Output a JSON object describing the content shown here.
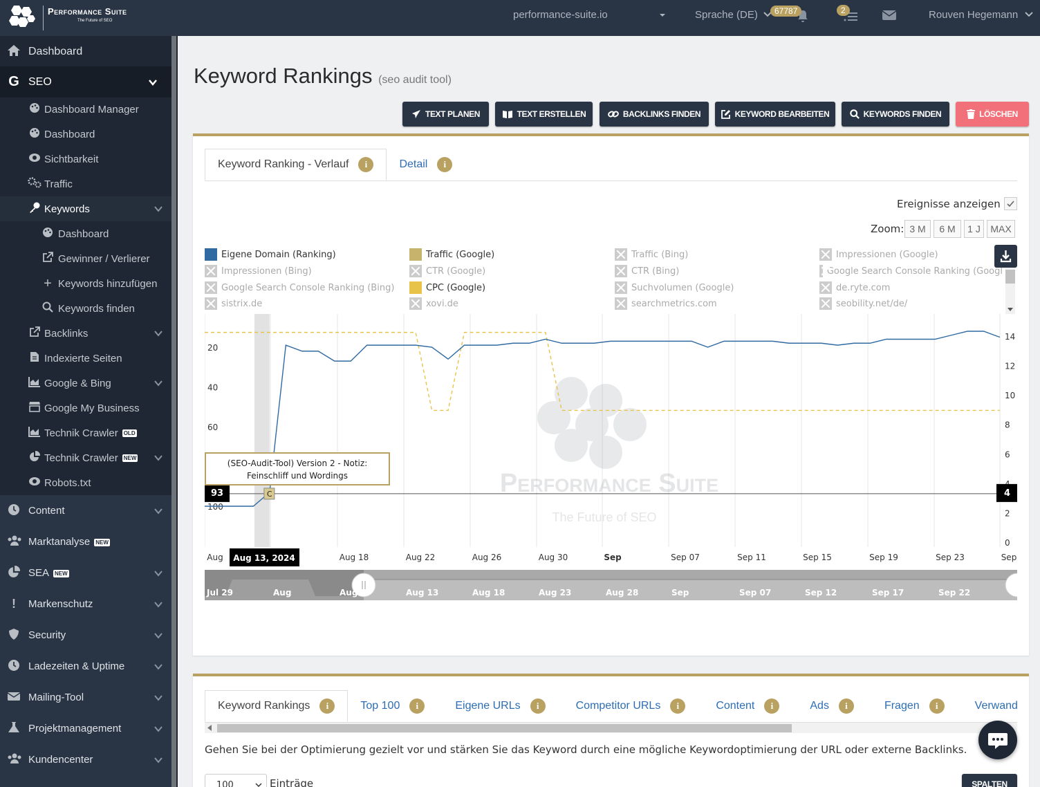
{
  "header": {
    "brand": "Performance Suite",
    "brand_tagline": "The Future of SEO",
    "domain": "performance-suite.io",
    "language": "Sprache (DE)",
    "credits_badge": "67787",
    "tasks_badge": "2",
    "user": "Rouven Hegemann"
  },
  "sidebar": {
    "dashboard": "Dashboard",
    "seo": "SEO",
    "seo_items": [
      "Dashboard Manager",
      "Dashboard",
      "Sichtbarkeit",
      "Traffic",
      "Keywords"
    ],
    "keyword_items": [
      "Dashboard",
      "Gewinner / Verlierer",
      "Keywords hinzufügen",
      "Keywords finden"
    ],
    "more_items": [
      "Backlinks",
      "Indexierte Seiten",
      "Google & Bing",
      "Google My Business",
      "Technik Crawler",
      "Technik Crawler",
      "Robots.txt"
    ],
    "tag_old": "OLD",
    "tag_new": "NEW",
    "sections": [
      "Content",
      "Marktanalyse",
      "SEA",
      "Markenschutz",
      "Security",
      "Ladezeiten & Uptime",
      "Mailing-Tool",
      "Projektmanagement",
      "Kundencenter"
    ]
  },
  "page": {
    "title": "Keyword Rankings",
    "subtitle": "(seo audit tool)",
    "buttons": [
      "TEXT PLANEN",
      "TEXT ERSTELLEN",
      "BACKLINKS FINDEN",
      "KEYWORD BEARBEITEN",
      "KEYWORDS FINDEN",
      "LÖSCHEN"
    ]
  },
  "chart_card": {
    "tabs": [
      "Keyword Ranking - Verlauf",
      "Detail"
    ],
    "events_label": "Ereignisse anzeigen",
    "zoom_label": "Zoom:",
    "zoom_options": [
      "3 M",
      "6 M",
      "1 J",
      "MAX"
    ],
    "legend": [
      {
        "label": "Eigene Domain (Ranking)",
        "color": "#2f6aa3",
        "on": true
      },
      {
        "label": "Traffic (Google)",
        "color": "#c7b36c",
        "on": true
      },
      {
        "label": "Traffic (Bing)",
        "on": false
      },
      {
        "label": "Impressionen (Google)",
        "on": false
      },
      {
        "label": "Impressionen (Bing)",
        "on": false
      },
      {
        "label": "CTR (Google)",
        "on": false
      },
      {
        "label": "CTR (Bing)",
        "on": false
      },
      {
        "label": "Google Search Console Ranking (Googl",
        "on": false
      },
      {
        "label": "Google Search Console Ranking (Bing)",
        "on": false
      },
      {
        "label": "CPC (Google)",
        "color": "#e8c34a",
        "on": true
      },
      {
        "label": "Suchvolumen (Google)",
        "on": false
      },
      {
        "label": "de.ryte.com",
        "on": false
      },
      {
        "label": "sistrix.de",
        "on": false
      },
      {
        "label": "xovi.de",
        "on": false
      },
      {
        "label": "searchmetrics.com",
        "on": false
      },
      {
        "label": "seobility.net/de/",
        "on": false
      }
    ],
    "tooltip_line1": "(SEO-Audit-Tool) Version 2 - Notiz:",
    "tooltip_line2": "Feinschliff und Wordings",
    "event_flag": "C",
    "crosshair_left": "93",
    "crosshair_right": "4",
    "crosshair_date": "Aug 13, 2024",
    "watermark_title": "Performance Suite",
    "watermark_tagline": "The Future of SEO",
    "navigator_labels": [
      "Jul 29",
      "Aug",
      "Aug",
      "Aug 13",
      "Aug 18",
      "Aug 23",
      "Aug 28",
      "Sep",
      "Sep 07",
      "Sep 12",
      "Sep 17",
      "Sep 22"
    ]
  },
  "chart_data": {
    "type": "line",
    "x_tick_labels": [
      "Aug",
      "Aug 18",
      "Aug 22",
      "Aug 26",
      "Aug 30",
      "Sep",
      "Sep 07",
      "Sep 11",
      "Sep 15",
      "Sep 19",
      "Sep 23",
      "Sep"
    ],
    "y_left_ticks": [
      20,
      40,
      60,
      80,
      100
    ],
    "y_left_reversed": true,
    "y_right_ticks": [
      14,
      12,
      10,
      8,
      6,
      4,
      2,
      0
    ],
    "x_range": [
      "2024-08-09",
      "2024-09-27"
    ],
    "series": [
      {
        "name": "Eigene Domain (Ranking)",
        "axis": "left",
        "x": [
          "2024-08-09",
          "2024-08-12",
          "2024-08-13",
          "2024-08-14",
          "2024-08-15",
          "2024-08-16",
          "2024-08-17",
          "2024-08-18",
          "2024-08-19",
          "2024-08-20",
          "2024-08-21",
          "2024-08-22",
          "2024-08-23",
          "2024-08-24",
          "2024-08-25",
          "2024-08-26",
          "2024-08-27",
          "2024-08-28",
          "2024-08-29",
          "2024-08-30",
          "2024-08-31",
          "2024-09-01",
          "2024-09-02",
          "2024-09-03",
          "2024-09-04",
          "2024-09-05",
          "2024-09-06",
          "2024-09-07",
          "2024-09-08",
          "2024-09-09",
          "2024-09-10",
          "2024-09-11",
          "2024-09-12",
          "2024-09-13",
          "2024-09-14",
          "2024-09-15",
          "2024-09-16",
          "2024-09-17",
          "2024-09-18",
          "2024-09-19",
          "2024-09-20",
          "2024-09-21",
          "2024-09-22",
          "2024-09-23",
          "2024-09-24",
          "2024-09-25",
          "2024-09-26",
          "2024-09-27"
        ],
        "y": [
          100,
          100,
          93,
          19,
          22,
          22,
          27,
          27,
          19,
          19,
          19,
          19,
          20,
          26,
          19,
          19,
          19,
          18,
          18,
          16,
          18,
          18,
          18,
          17,
          17,
          17,
          17,
          17,
          17,
          20,
          17,
          17,
          17,
          17,
          18,
          18,
          18,
          19,
          18,
          18,
          16,
          16,
          16,
          16,
          14,
          12,
          12,
          15
        ]
      },
      {
        "name": "CPC (Google)",
        "axis": "right",
        "x": [
          "2024-08-09",
          "2024-08-22",
          "2024-08-23",
          "2024-08-24",
          "2024-08-25",
          "2024-08-26",
          "2024-08-30",
          "2024-08-31",
          "2024-09-01",
          "2024-09-27"
        ],
        "y": [
          14.3,
          14.3,
          9.0,
          9.0,
          14.3,
          14.3,
          14.3,
          9.0,
          9.0,
          9.0
        ]
      }
    ],
    "events": [
      {
        "x": "2024-08-13",
        "label": "C"
      }
    ]
  },
  "bottom_card": {
    "tabs": [
      "Keyword Rankings",
      "Top 100",
      "Eigene URLs",
      "Competitor URLs",
      "Content",
      "Ads",
      "Fragen",
      "Verwandte"
    ],
    "description": "Gehen Sie bei der Optimierung gezielt vor und stärken Sie das Keyword durch eine mögliche Keywordoptimierung der URL oder externe Backlinks.",
    "page_size": "100",
    "entries_label": "Einträge",
    "columns_button": "SPALTEN"
  }
}
